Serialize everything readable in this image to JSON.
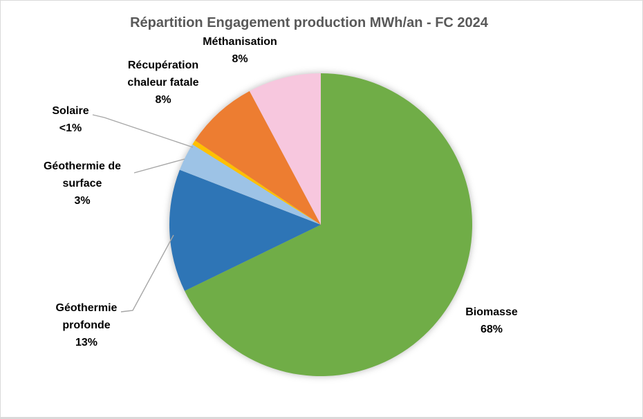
{
  "chart": {
    "title": "Répartition Engagement production MWh/an - FC 2024",
    "title_color": "#595959",
    "leader_line_color": "#A6A6A6",
    "background_color": "#FFFFFF",
    "border_color": "#D9D9D9"
  },
  "chart_data": {
    "type": "pie",
    "title": "Répartition Engagement production MWh/an - FC 2024",
    "direction": "clockwise",
    "start_angle_deg": 0,
    "legend_position": "none",
    "labels_style": "outside callouts with percentages",
    "slices": [
      {
        "label": "Biomasse",
        "pct_label": "68%",
        "value": 67.8,
        "color": "#70AD47"
      },
      {
        "label": "Géothermie profonde",
        "pct_label": "13%",
        "value": 13.1,
        "color": "#2E75B6"
      },
      {
        "label": "Géothermie de surface",
        "pct_label": "3%",
        "value": 3.0,
        "color": "#9DC3E6"
      },
      {
        "label": "Solaire",
        "pct_label": "<1%",
        "value": 0.5,
        "color": "#FFC000"
      },
      {
        "label": "Récupération chaleur fatale",
        "pct_label": "8%",
        "value": 7.8,
        "color": "#ED7D31"
      },
      {
        "label": "Méthanisation",
        "pct_label": "8%",
        "value": 7.8,
        "color": "#F7C7DE"
      }
    ]
  }
}
